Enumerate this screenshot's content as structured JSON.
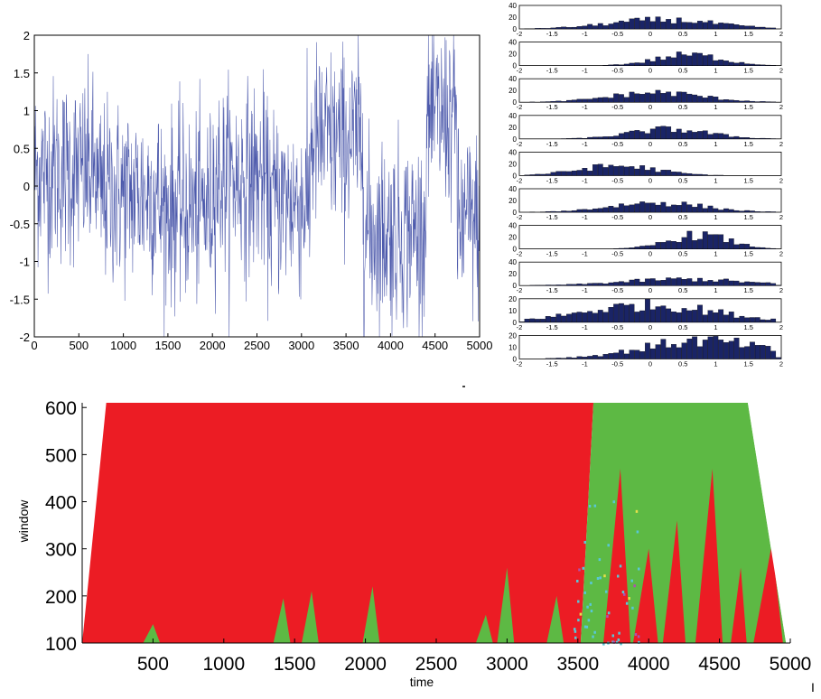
{
  "chart_data": [
    {
      "type": "line",
      "title": "",
      "xlabel": "",
      "ylabel": "",
      "xlim": [
        0,
        5000
      ],
      "ylim": [
        -2,
        2
      ],
      "xticks": [
        0,
        500,
        1000,
        1500,
        2000,
        2500,
        3000,
        3500,
        4000,
        4500,
        5000
      ],
      "yticks": [
        2,
        1.5,
        1,
        0.5,
        0,
        -0.5,
        -1,
        -1.5,
        -2
      ],
      "color": "#2e3d9e",
      "series": [
        {
          "regime_means": [
            {
              "x_start": 0,
              "x_end": 700,
              "mean": 0.2
            },
            {
              "x_start": 700,
              "x_end": 1400,
              "mean": -0.1
            },
            {
              "x_start": 1400,
              "x_end": 2000,
              "mean": -0.3
            },
            {
              "x_start": 2000,
              "x_end": 2600,
              "mean": 0.1
            },
            {
              "x_start": 2600,
              "x_end": 3100,
              "mean": -0.2
            },
            {
              "x_start": 3100,
              "x_end": 3700,
              "mean": 0.6
            },
            {
              "x_start": 3700,
              "x_end": 4400,
              "mean": -0.6
            },
            {
              "x_start": 4400,
              "x_end": 4750,
              "mean": 0.9
            },
            {
              "x_start": 4750,
              "x_end": 5000,
              "mean": -0.5
            }
          ]
        }
      ]
    },
    {
      "type": "bar",
      "description_rows": 10,
      "xlim": [
        -2,
        2
      ],
      "xticks": [
        "-2",
        "-1.5",
        "-1",
        "-0.5",
        "0",
        "0.5",
        "1",
        "1.5",
        "2"
      ],
      "color": "#1a2466",
      "panels": [
        {
          "yticks": [
            "40",
            "20",
            "0"
          ],
          "ymax": 40,
          "mode": 0.2,
          "spread": 0.8,
          "peak": 17
        },
        {
          "yticks": [
            "40",
            "20",
            "0"
          ],
          "ymax": 40,
          "mode": 0.6,
          "spread": 0.5,
          "peak": 20
        },
        {
          "yticks": [
            "40",
            "20",
            "0"
          ],
          "ymax": 40,
          "mode": 0.1,
          "spread": 0.7,
          "peak": 18
        },
        {
          "yticks": [
            "40",
            "20",
            "0"
          ],
          "ymax": 40,
          "mode": 0.3,
          "spread": 0.6,
          "peak": 18
        },
        {
          "yticks": [
            "40",
            "20",
            "0"
          ],
          "ymax": 40,
          "mode": -0.5,
          "spread": 0.6,
          "peak": 18
        },
        {
          "yticks": [
            "40",
            "20",
            "0"
          ],
          "ymax": 40,
          "mode": 0.1,
          "spread": 0.7,
          "peak": 18
        },
        {
          "yticks": [
            "40",
            "20",
            "0"
          ],
          "ymax": 40,
          "mode": 0.75,
          "spread": 0.45,
          "peak": 26
        },
        {
          "yticks": [
            "40",
            "20",
            "0"
          ],
          "ymax": 40,
          "mode": 0.5,
          "spread": 0.9,
          "peak": 12
        },
        {
          "yticks": [
            "20",
            "10",
            "0"
          ],
          "ymax": 20,
          "mode": 0.0,
          "spread": 1.0,
          "peak": 16
        },
        {
          "yticks": [
            "20",
            "10",
            "0"
          ],
          "ymax": 20,
          "mode": 0.8,
          "spread": 0.9,
          "peak": 17
        }
      ]
    },
    {
      "type": "heatmap",
      "xlabel": "time",
      "ylabel": "window",
      "xlim": [
        0,
        5000
      ],
      "ylim": [
        100,
        610
      ],
      "xticks": [
        500,
        1000,
        1500,
        2000,
        2500,
        3000,
        3500,
        4000,
        4500,
        5000
      ],
      "yticks": [
        600,
        500,
        400,
        300,
        200,
        100
      ],
      "colors": {
        "red": "#ec1c24",
        "green": "#5db944",
        "cyan": "#59c7d6",
        "magenta": "#b050b0",
        "yellow": "#e6e04a"
      },
      "regions": {
        "left_edge": {
          "x_at_100": 0,
          "x_at_610": 170
        },
        "right_edge": {
          "x_at_100": 4970,
          "x_at_610": 4700
        },
        "green_start_x": 3520,
        "green_start_top_x": 3610,
        "red_spikes": [
          {
            "x": 3800,
            "width": 120,
            "top": 470
          },
          {
            "x": 4000,
            "width": 110,
            "top": 300
          },
          {
            "x": 4200,
            "width": 100,
            "top": 360
          },
          {
            "x": 4450,
            "width": 120,
            "top": 470
          },
          {
            "x": 4650,
            "width": 70,
            "top": 260
          },
          {
            "x": 4870,
            "width": 130,
            "top": 310
          }
        ],
        "green_patches": [
          {
            "x": 500,
            "top": 140
          },
          {
            "x": 1420,
            "top": 195
          },
          {
            "x": 1620,
            "top": 210
          },
          {
            "x": 2050,
            "top": 220
          },
          {
            "x": 2850,
            "top": 160
          },
          {
            "x": 3000,
            "top": 260
          },
          {
            "x": 3350,
            "top": 200
          }
        ]
      }
    }
  ],
  "page": {
    "bottom_mark": "I"
  }
}
